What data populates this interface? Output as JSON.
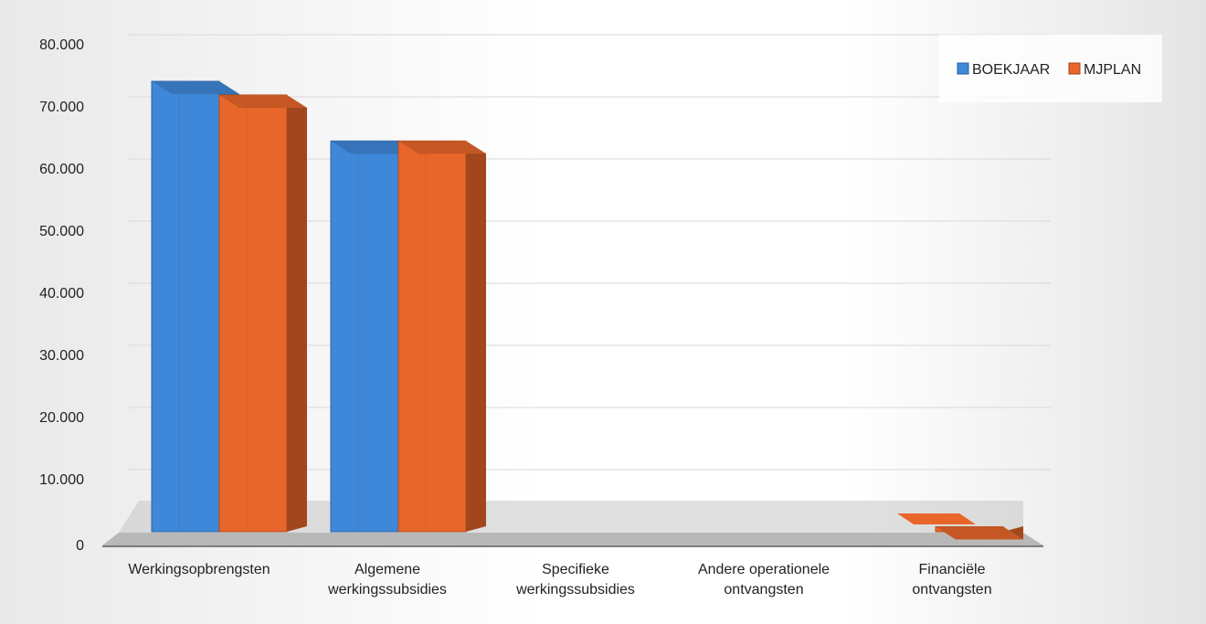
{
  "chart_data": {
    "type": "bar",
    "style": "3d-clustered-column",
    "title": "",
    "xlabel": "",
    "ylabel": "",
    "ylim": [
      0,
      80000
    ],
    "yticks": [
      0,
      10000,
      20000,
      30000,
      40000,
      50000,
      60000,
      70000,
      80000
    ],
    "ytick_labels": [
      "0",
      "10.000",
      "20.000",
      "30.000",
      "40.000",
      "50.000",
      "60.000",
      "70.000",
      "80.000"
    ],
    "grid": true,
    "legend_position": "top-right",
    "categories": [
      [
        "Werkingsopbrengsten"
      ],
      [
        "Algemene",
        "werkingssubsidies"
      ],
      [
        "Specifieke",
        "werkingssubsidies"
      ],
      [
        "Andere operationele",
        "ontvangsten"
      ],
      [
        "Financiële",
        "ontvangsten"
      ]
    ],
    "series": [
      {
        "name": "BOEKJAAR",
        "color": "#3f87d8",
        "values": [
          72500,
          62900,
          0,
          0,
          0
        ]
      },
      {
        "name": "MJPLAN",
        "color": "#e8662a",
        "values": [
          70300,
          62900,
          0,
          0,
          800
        ]
      }
    ]
  }
}
